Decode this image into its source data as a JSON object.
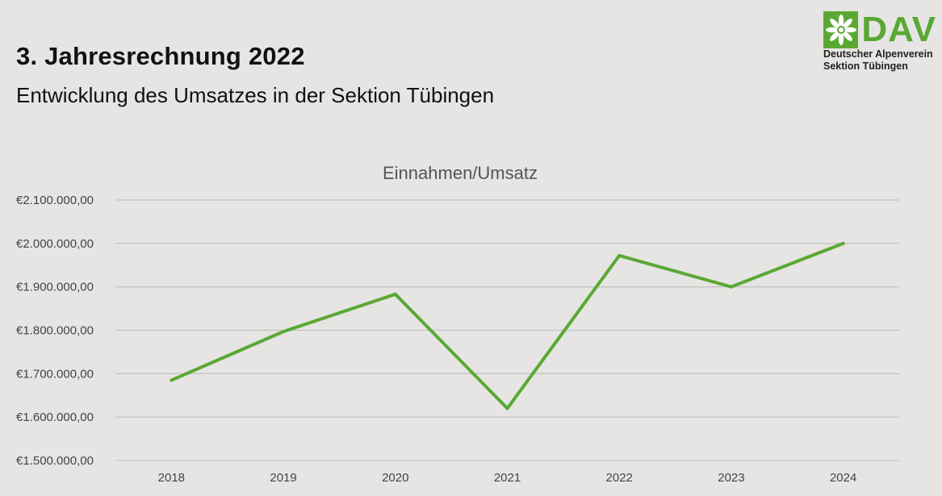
{
  "header": {
    "title": "3. Jahresrechnung 2022",
    "subtitle": "Entwicklung des Umsatzes in der Sektion Tübingen"
  },
  "logo": {
    "wordmark": "DAV",
    "line1": "Deutscher Alpenverein",
    "line2": "Sektion Tübingen",
    "color": "#5aa834"
  },
  "chart_data": {
    "type": "line",
    "title": "Einnahmen/Umsatz",
    "xlabel": "",
    "ylabel": "",
    "categories": [
      "2018",
      "2019",
      "2020",
      "2021",
      "2022",
      "2023",
      "2024"
    ],
    "series": [
      {
        "name": "Einnahmen/Umsatz",
        "color": "#5aa834",
        "values": [
          1685000,
          1797000,
          1883000,
          1620000,
          1972000,
          1900000,
          2000000
        ]
      }
    ],
    "ylim": [
      1500000,
      2100000
    ],
    "ytick_values": [
      1500000,
      1600000,
      1700000,
      1800000,
      1900000,
      2000000,
      2100000
    ],
    "ytick_labels": [
      "€1.500.000,00",
      "€1.600.000,00",
      "€1.700.000,00",
      "€1.800.000,00",
      "€1.900.000,00",
      "€2.000.000,00",
      "€2.100.000,00"
    ],
    "grid": true,
    "legend": "none"
  }
}
